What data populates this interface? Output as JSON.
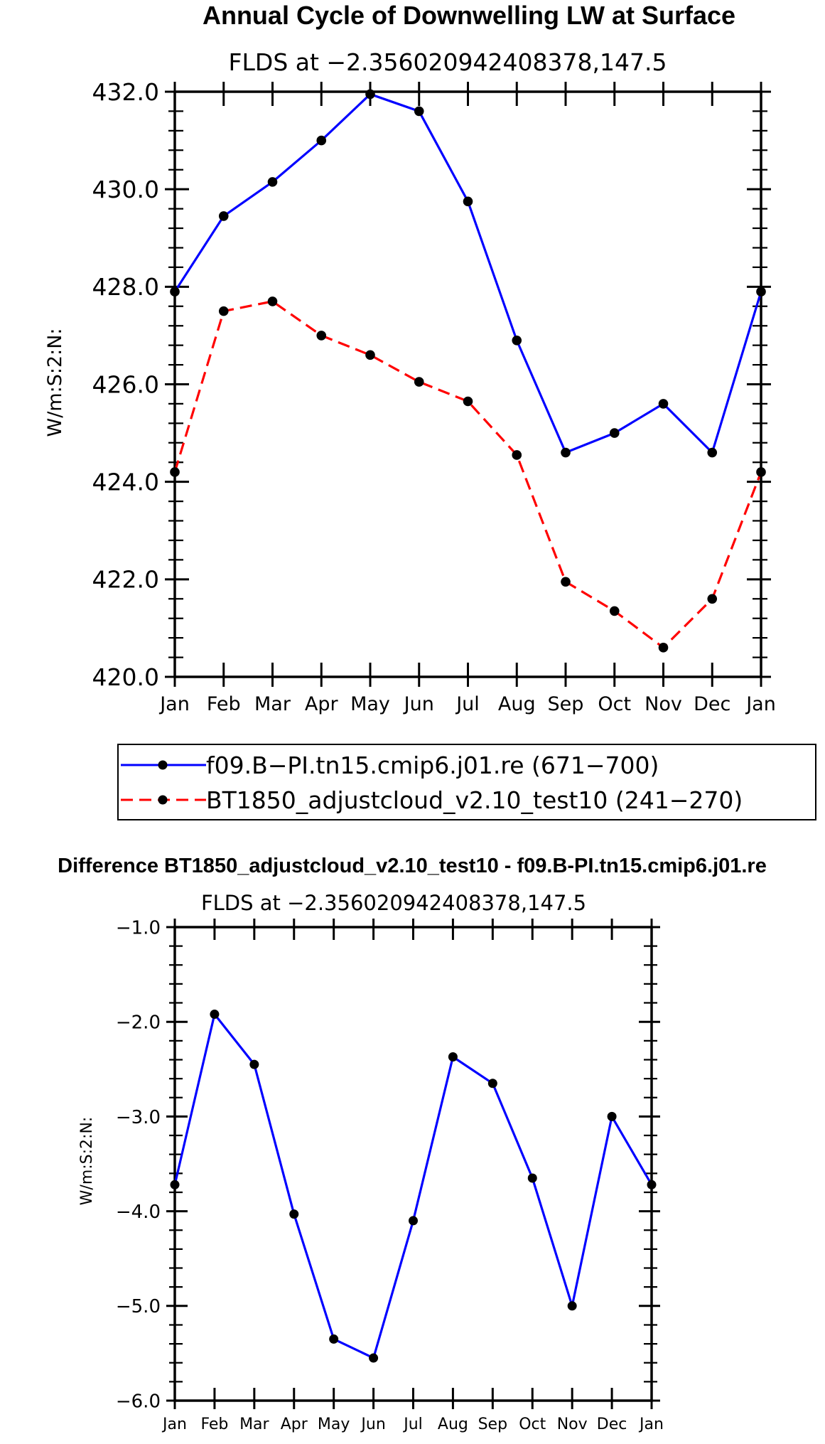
{
  "chart_data": [
    {
      "type": "line",
      "title": "Annual Cycle of Downwelling LW at Surface",
      "subtitle": "FLDS at −2.356020942408378,147.5",
      "ylabel": "W/m:S:2:N:",
      "xlabel": "",
      "categories": [
        "Jan",
        "Feb",
        "Mar",
        "Apr",
        "May",
        "Jun",
        "Jul",
        "Aug",
        "Sep",
        "Oct",
        "Nov",
        "Dec",
        "Jan"
      ],
      "ylim": [
        420.0,
        432.0
      ],
      "yticks": [
        "420.0",
        "422.0",
        "424.0",
        "426.0",
        "428.0",
        "430.0",
        "432.0"
      ],
      "grid": false,
      "legend_position": "below",
      "series": [
        {
          "name": "f09.B−PI.tn15.cmip6.j01.re (671−700)",
          "color": "#0000ff",
          "dash": "solid",
          "values": [
            427.9,
            429.45,
            430.15,
            431.0,
            431.95,
            431.6,
            429.75,
            426.9,
            424.6,
            425.0,
            425.6,
            424.6,
            427.9
          ]
        },
        {
          "name": "BT1850_adjustcloud_v2.10_test10 (241−270)",
          "color": "#ff0000",
          "dash": "dashed",
          "values": [
            424.2,
            427.5,
            427.7,
            427.0,
            426.6,
            426.05,
            425.65,
            424.55,
            421.95,
            421.35,
            420.6,
            421.6,
            424.2
          ]
        }
      ]
    },
    {
      "type": "line",
      "title": "Difference BT1850_adjustcloud_v2.10_test10 - f09.B-PI.tn15.cmip6.j01.re",
      "subtitle": "FLDS at −2.356020942408378,147.5",
      "ylabel": "W/m:S:2:N:",
      "xlabel": "",
      "categories": [
        "Jan",
        "Feb",
        "Mar",
        "Apr",
        "May",
        "Jun",
        "Jul",
        "Aug",
        "Sep",
        "Oct",
        "Nov",
        "Dec",
        "Jan"
      ],
      "ylim": [
        -6.0,
        -1.0
      ],
      "yticks": [
        "−6.0",
        "−5.0",
        "−4.0",
        "−3.0",
        "−2.0",
        "−1.0"
      ],
      "grid": false,
      "series": [
        {
          "name": "difference",
          "color": "#0000ff",
          "dash": "solid",
          "values": [
            -3.72,
            -1.92,
            -2.45,
            -4.03,
            -5.35,
            -5.55,
            -4.1,
            -2.37,
            -2.65,
            -3.65,
            -5.0,
            -3.0,
            -3.72
          ]
        }
      ]
    }
  ]
}
